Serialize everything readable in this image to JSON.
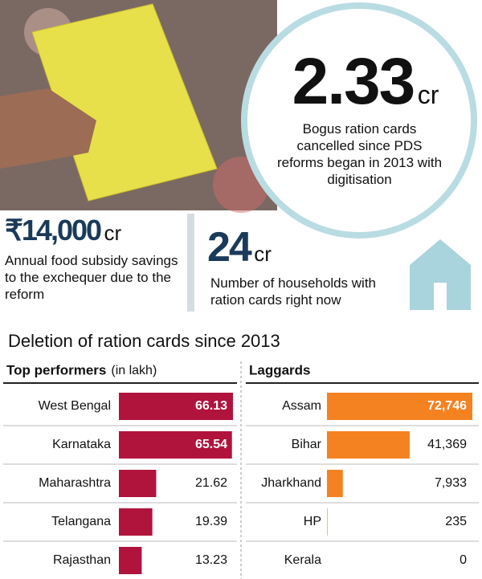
{
  "header": {
    "highlight": {
      "number": "2.33",
      "unit": "cr",
      "text": "Bogus ration cards cancelled since PDS reforms began in 2013 with digitisation"
    },
    "stats": [
      {
        "number": "₹14,000",
        "unit": "cr",
        "text": "Annual food subsidy savings to the exchequer due to the reform"
      },
      {
        "number": "24",
        "unit": "cr",
        "text": "Number of households with ration cards right now"
      }
    ],
    "section_title": "Deletion of ration cards since 2013"
  },
  "chart_data": [
    {
      "type": "bar",
      "orientation": "horizontal",
      "title": "Top performers",
      "subtitle": "(in lakh)",
      "categories": [
        "West Bengal",
        "Karnataka",
        "Maharashtra",
        "Telangana",
        "Rajasthan"
      ],
      "values": [
        66.13,
        65.54,
        21.62,
        19.39,
        13.23
      ],
      "color": "#b0133c"
    },
    {
      "type": "bar",
      "orientation": "horizontal",
      "title": "Laggards",
      "categories": [
        "Assam",
        "Bihar",
        "Jharkhand",
        "HP",
        "Kerala"
      ],
      "values": [
        72746,
        41369,
        7933,
        235,
        0
      ],
      "value_labels": [
        "72,746",
        "41,369",
        "7,933",
        "235",
        "0"
      ],
      "color": "#f58220"
    }
  ]
}
